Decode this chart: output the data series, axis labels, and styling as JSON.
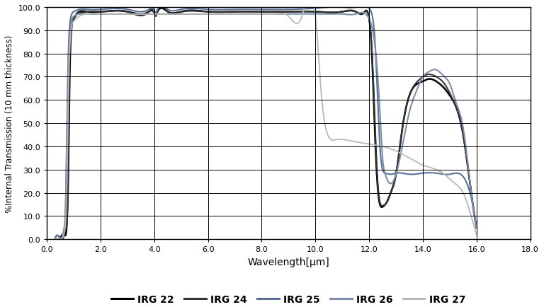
{
  "title": "",
  "xlabel": "Wavelength[μm]",
  "ylabel": "%Internal Transmission (10 mm thickness)",
  "xlim": [
    0.0,
    18.0
  ],
  "ylim": [
    0.0,
    100.0
  ],
  "xticks": [
    0.0,
    2.0,
    4.0,
    6.0,
    8.0,
    10.0,
    12.0,
    14.0,
    16.0,
    18.0
  ],
  "yticks": [
    0.0,
    10.0,
    20.0,
    30.0,
    40.0,
    50.0,
    60.0,
    70.0,
    80.0,
    90.0,
    100.0
  ],
  "series": [
    {
      "label": "IRG 22",
      "color": "#000000",
      "linewidth": 1.8,
      "x": [
        0.3,
        0.5,
        0.65,
        0.75,
        0.8,
        0.85,
        0.9,
        1.0,
        1.1,
        1.2,
        1.5,
        2.0,
        3.0,
        3.8,
        4.0,
        4.05,
        4.1,
        4.5,
        5.0,
        6.0,
        7.0,
        8.0,
        9.0,
        10.0,
        11.0,
        11.5,
        11.8,
        12.0,
        12.1,
        12.2,
        12.3,
        12.4,
        12.5,
        12.6,
        12.7,
        12.8,
        13.0,
        13.2,
        13.5,
        13.8,
        14.0,
        14.2,
        14.5,
        14.8,
        15.0,
        15.2,
        15.5,
        15.8,
        16.0
      ],
      "y": [
        0.0,
        0.5,
        2.0,
        8.0,
        30.0,
        70.0,
        88.0,
        95.0,
        97.0,
        98.0,
        98.0,
        98.0,
        98.0,
        98.0,
        97.5,
        96.5,
        97.5,
        98.0,
        98.0,
        98.0,
        98.0,
        98.0,
        98.0,
        98.0,
        98.0,
        98.0,
        97.5,
        95.0,
        80.0,
        50.0,
        25.0,
        15.0,
        14.0,
        15.0,
        17.0,
        20.0,
        28.0,
        45.0,
        62.0,
        67.0,
        68.0,
        69.0,
        68.0,
        65.0,
        62.0,
        58.0,
        45.0,
        20.0,
        5.0
      ]
    },
    {
      "label": "IRG 24",
      "color": "#333333",
      "linewidth": 1.5,
      "x": [
        0.3,
        0.5,
        0.65,
        0.72,
        0.78,
        0.82,
        0.88,
        0.92,
        1.0,
        1.1,
        1.2,
        1.5,
        2.0,
        3.0,
        3.8,
        4.0,
        4.05,
        4.1,
        4.5,
        5.0,
        6.0,
        7.0,
        8.0,
        9.0,
        10.0,
        11.0,
        11.5,
        11.8,
        12.0,
        12.1,
        12.2,
        12.3,
        12.4,
        12.5,
        12.6,
        12.7,
        12.8,
        13.0,
        13.2,
        13.5,
        13.8,
        14.0,
        14.2,
        14.5,
        14.8,
        15.0,
        15.2,
        15.5,
        15.8,
        16.0
      ],
      "y": [
        0.0,
        0.5,
        2.0,
        5.0,
        20.0,
        60.0,
        85.0,
        92.0,
        95.0,
        97.0,
        97.5,
        98.0,
        98.0,
        98.0,
        98.0,
        97.5,
        96.0,
        97.5,
        98.0,
        98.0,
        98.0,
        98.0,
        98.0,
        98.0,
        98.0,
        98.0,
        98.0,
        97.5,
        95.0,
        82.0,
        55.0,
        28.0,
        16.0,
        14.5,
        15.0,
        17.0,
        20.0,
        28.0,
        45.0,
        62.0,
        68.0,
        70.0,
        71.0,
        70.0,
        67.0,
        63.0,
        58.0,
        45.0,
        20.0,
        5.0
      ]
    },
    {
      "label": "IRG 25",
      "color": "#5a7099",
      "linewidth": 1.5,
      "x": [
        0.3,
        0.5,
        0.6,
        0.65,
        0.7,
        0.75,
        0.8,
        0.85,
        0.9,
        1.0,
        1.2,
        1.5,
        2.0,
        3.0,
        3.8,
        4.0,
        4.05,
        4.1,
        4.5,
        5.0,
        6.0,
        7.0,
        8.0,
        9.0,
        10.0,
        11.0,
        11.5,
        12.0,
        12.1,
        12.2,
        12.3,
        12.4,
        12.5,
        12.6,
        12.8,
        13.0,
        13.5,
        14.0,
        14.5,
        15.0,
        15.5,
        16.0
      ],
      "y": [
        0.0,
        0.5,
        2.0,
        5.0,
        15.0,
        50.0,
        80.0,
        92.0,
        96.0,
        98.0,
        99.0,
        99.0,
        99.0,
        99.0,
        99.0,
        98.5,
        97.5,
        98.5,
        99.0,
        99.0,
        99.0,
        99.0,
        99.0,
        99.0,
        99.5,
        100.0,
        100.0,
        99.5,
        97.0,
        88.0,
        65.0,
        40.0,
        30.0,
        28.5,
        28.0,
        28.5,
        28.0,
        28.5,
        28.5,
        28.0,
        27.0,
        5.0
      ]
    },
    {
      "label": "IRG 26",
      "color": "#7b8faa",
      "linewidth": 1.5,
      "x": [
        0.3,
        0.4,
        0.5,
        0.55,
        0.6,
        0.65,
        0.7,
        0.75,
        0.8,
        0.85,
        0.9,
        1.0,
        1.2,
        1.5,
        2.0,
        3.0,
        4.0,
        5.0,
        6.0,
        7.0,
        8.0,
        9.0,
        10.0,
        10.5,
        11.0,
        11.5,
        12.0,
        12.2,
        12.4,
        12.5,
        12.6,
        12.7,
        12.8,
        12.9,
        13.0,
        13.2,
        13.5,
        13.8,
        14.0,
        14.2,
        14.5,
        14.8,
        15.0,
        15.2,
        15.5,
        15.8,
        16.0
      ],
      "y": [
        0.0,
        0.0,
        0.0,
        0.5,
        2.0,
        5.0,
        15.0,
        45.0,
        75.0,
        88.0,
        93.0,
        96.0,
        97.0,
        97.0,
        97.0,
        97.0,
        97.0,
        97.0,
        97.0,
        97.0,
        97.0,
        97.0,
        97.0,
        97.0,
        97.0,
        97.0,
        95.0,
        85.0,
        55.0,
        35.0,
        28.0,
        25.0,
        24.0,
        25.0,
        28.0,
        38.0,
        55.0,
        65.0,
        70.0,
        72.0,
        73.0,
        70.0,
        67.0,
        60.0,
        48.0,
        20.0,
        5.0
      ]
    },
    {
      "label": "IRG 27",
      "color": "#b8b8b8",
      "linewidth": 1.3,
      "x": [
        0.3,
        0.4,
        0.5,
        0.55,
        0.6,
        0.65,
        0.7,
        0.75,
        0.8,
        0.85,
        0.9,
        1.0,
        1.2,
        1.5,
        2.0,
        3.0,
        4.0,
        5.0,
        6.0,
        7.0,
        8.0,
        8.5,
        9.0,
        9.5,
        10.0,
        10.2,
        10.5,
        10.8,
        11.0,
        11.5,
        12.0,
        12.5,
        13.0,
        13.5,
        14.0,
        14.5,
        14.8,
        15.0,
        15.2,
        15.5,
        15.8,
        16.0
      ],
      "y": [
        0.0,
        0.0,
        0.0,
        0.5,
        1.0,
        3.0,
        8.0,
        25.0,
        60.0,
        82.0,
        90.0,
        94.0,
        96.0,
        97.0,
        97.0,
        97.0,
        97.0,
        97.0,
        97.0,
        97.0,
        97.0,
        97.0,
        96.0,
        96.0,
        97.0,
        65.0,
        44.0,
        43.0,
        43.0,
        42.0,
        41.0,
        40.0,
        38.0,
        35.0,
        32.0,
        30.0,
        28.0,
        26.0,
        24.0,
        20.0,
        10.0,
        2.0
      ]
    }
  ],
  "background_color": "#ffffff",
  "grid_color": "#000000",
  "legend_ncol": 5
}
